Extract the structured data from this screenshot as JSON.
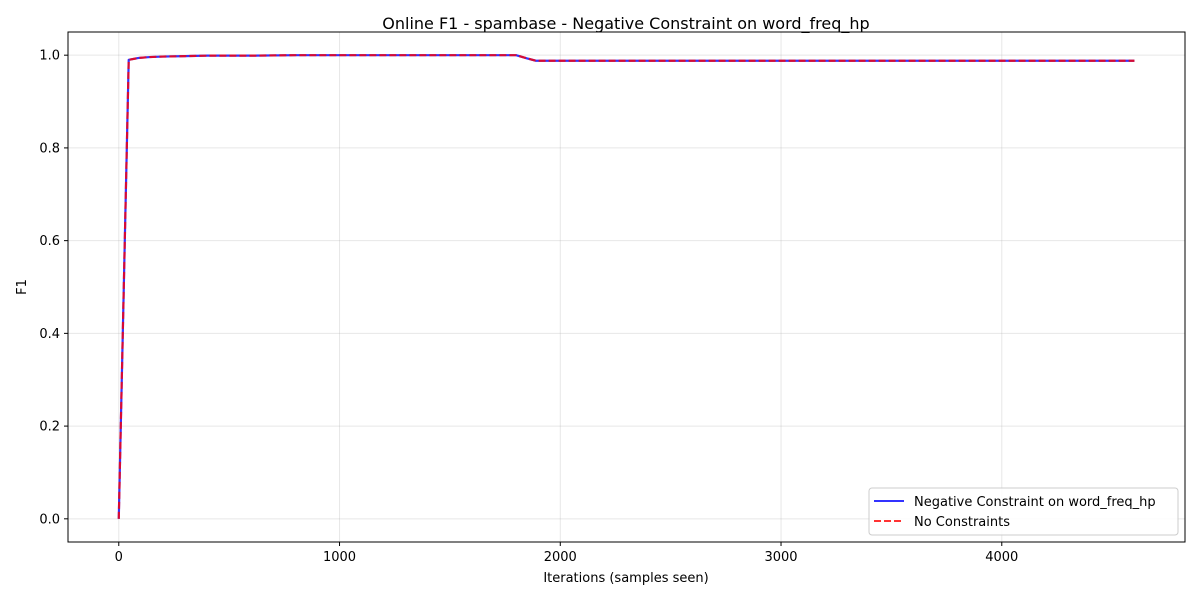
{
  "chart_data": {
    "type": "line",
    "title": "Online F1 - spambase - Negative Constraint on word_freq_hp",
    "xlabel": "Iterations (samples seen)",
    "ylabel": "F1",
    "xlim": [
      -230,
      4830
    ],
    "ylim": [
      -0.05,
      1.05
    ],
    "xticks": [
      0,
      1000,
      2000,
      3000,
      4000
    ],
    "yticks": [
      0.0,
      0.2,
      0.4,
      0.6,
      0.8,
      1.0
    ],
    "xtick_labels": [
      "0",
      "1000",
      "2000",
      "3000",
      "4000"
    ],
    "ytick_labels": [
      "0.0",
      "0.2",
      "0.4",
      "0.6",
      "0.8",
      "1.0"
    ],
    "grid": true,
    "legend_position": "lower-right",
    "series": [
      {
        "name": "Negative Constraint on word_freq_hp",
        "color": "#0000ff",
        "style": "solid",
        "x": [
          0,
          45,
          90,
          140,
          200,
          300,
          400,
          600,
          800,
          1000,
          1200,
          1400,
          1600,
          1700,
          1800,
          1850,
          1890,
          2000,
          2500,
          3000,
          3500,
          4000,
          4500,
          4601
        ],
        "y": [
          0.0,
          0.99,
          0.994,
          0.996,
          0.997,
          0.998,
          0.999,
          0.999,
          1.0,
          1.0,
          1.0,
          1.0,
          1.0,
          1.0,
          1.0,
          0.993,
          0.988,
          0.988,
          0.988,
          0.988,
          0.988,
          0.988,
          0.988,
          0.988
        ]
      },
      {
        "name": "No Constraints",
        "color": "#ff0000",
        "style": "dashed",
        "x": [
          0,
          45,
          90,
          140,
          200,
          300,
          400,
          600,
          800,
          1000,
          1200,
          1400,
          1600,
          1700,
          1800,
          1850,
          1890,
          2000,
          2500,
          3000,
          3500,
          4000,
          4500,
          4601
        ],
        "y": [
          0.0,
          0.99,
          0.994,
          0.996,
          0.997,
          0.998,
          0.999,
          0.999,
          1.0,
          1.0,
          1.0,
          1.0,
          1.0,
          1.0,
          1.0,
          0.993,
          0.988,
          0.988,
          0.988,
          0.988,
          0.988,
          0.988,
          0.988,
          0.988
        ]
      }
    ]
  }
}
